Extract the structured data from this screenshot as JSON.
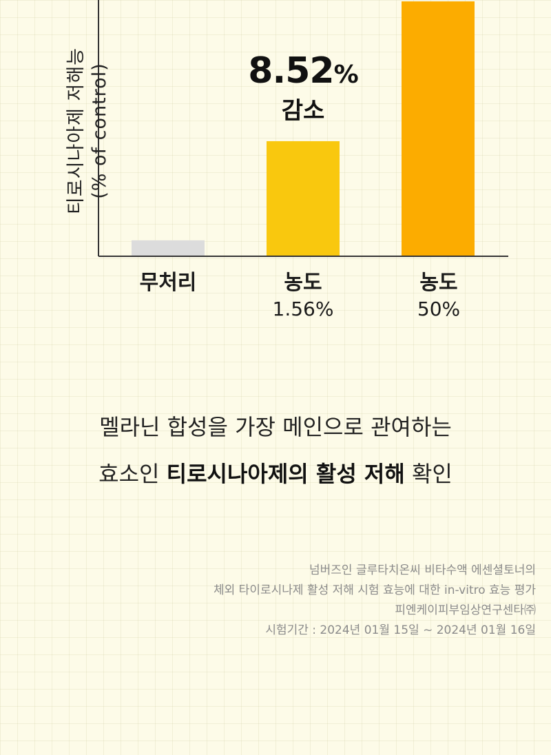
{
  "chart_data": {
    "type": "bar",
    "ylabel_line1": "티로시나아제 저해능",
    "ylabel_line2": "(% of control)",
    "categories": [
      {
        "name": "무처리",
        "sub": ""
      },
      {
        "name": "농도",
        "sub": "1.56%"
      },
      {
        "name": "농도",
        "sub": "50%"
      }
    ],
    "values": [
      6,
      45,
      100
    ],
    "ylim": [
      0,
      100
    ],
    "colors": [
      "#dcdcdc",
      "#f9c80e",
      "#fcac00"
    ],
    "annotation": {
      "value": "8.52",
      "unit": "%",
      "change": "감소"
    }
  },
  "headline": {
    "line1": "멜라닌 합성을 가장 메인으로 관여하는",
    "line2_pre": "효소인 ",
    "line2_bold": "티로시나아제의 활성 저해",
    "line2_post": " 확인"
  },
  "source": {
    "line1": "넘버즈인 글루타치온씨 비타수액 에센셜토너의",
    "line2": "체외 타이로시나제 활성 저해 시험 효능에 대한 in-vitro 효능 평가",
    "line3": "피엔케이피부임상연구센타㈜",
    "line4": "시험기간 : 2024년 01월 15일 ~ 2024년 01월 16일"
  },
  "colors": {
    "axis": "#333333",
    "background": "#fdfbe8"
  }
}
